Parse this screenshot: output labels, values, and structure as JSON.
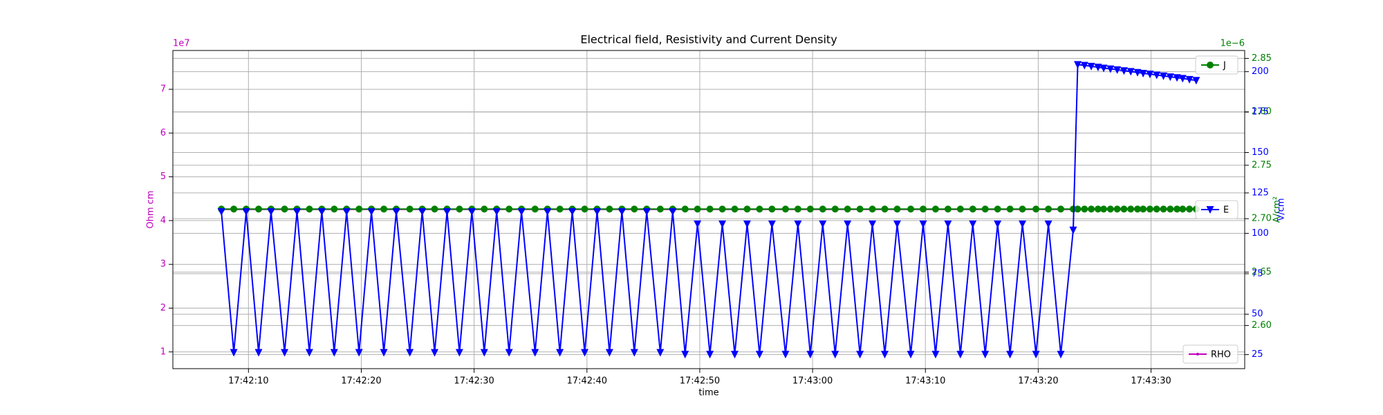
{
  "chart_data": {
    "type": "line",
    "title": "Electrical field, Resistivity and Current Density",
    "xlabel": "time",
    "x": [
      "17:42:07.6",
      "17:42:08.7",
      "17:42:09.8",
      "17:42:10.9",
      "17:42:12.0",
      "17:42:13.2",
      "17:42:14.3",
      "17:42:15.4",
      "17:42:16.5",
      "17:42:17.6",
      "17:42:18.7",
      "17:42:19.8",
      "17:42:20.9",
      "17:42:22.0",
      "17:42:23.1",
      "17:42:24.3",
      "17:42:25.4",
      "17:42:26.5",
      "17:42:27.6",
      "17:42:28.7",
      "17:42:29.8",
      "17:42:30.9",
      "17:42:32.0",
      "17:42:33.1",
      "17:42:34.2",
      "17:42:35.4",
      "17:42:36.5",
      "17:42:37.6",
      "17:42:38.7",
      "17:42:39.8",
      "17:42:40.9",
      "17:42:42.0",
      "17:42:43.1",
      "17:42:44.2",
      "17:42:45.3",
      "17:42:46.5",
      "17:42:47.6",
      "17:42:48.7",
      "17:42:49.8",
      "17:42:50.9",
      "17:42:52.0",
      "17:42:53.1",
      "17:42:54.2",
      "17:42:55.3",
      "17:42:56.4",
      "17:42:57.6",
      "17:42:58.7",
      "17:42:59.8",
      "17:43:00.9",
      "17:43:02.0",
      "17:43:03.1",
      "17:43:04.2",
      "17:43:05.3",
      "17:43:06.4",
      "17:43:07.5",
      "17:43:08.7",
      "17:43:09.8",
      "17:43:10.9",
      "17:43:12.0",
      "17:43:13.1",
      "17:43:14.2",
      "17:43:15.3",
      "17:43:16.4",
      "17:43:17.5",
      "17:43:18.6",
      "17:43:19.8",
      "17:43:20.9",
      "17:43:22.0",
      "17:43:23.1",
      "17:43:23.5",
      "17:43:24.1",
      "17:43:24.7",
      "17:43:25.3",
      "17:43:25.8",
      "17:43:26.4",
      "17:43:27.0",
      "17:43:27.6",
      "17:43:28.2",
      "17:43:28.8",
      "17:43:29.3",
      "17:43:29.9",
      "17:43:30.5",
      "17:43:31.1",
      "17:43:31.7",
      "17:43:32.3",
      "17:43:32.8",
      "17:43:33.4",
      "17:43:34.0"
    ],
    "xlim": [
      "17:42:03.3",
      "17:43:38.3"
    ],
    "xticks": [
      "17:42:10",
      "17:42:20",
      "17:42:30",
      "17:42:40",
      "17:42:50",
      "17:43:00",
      "17:43:10",
      "17:43:20",
      "17:43:30"
    ],
    "ylabel": "Ohm cm",
    "y_offset_label": "1e7",
    "y_color": "#bf00bf",
    "ylim": [
      0.617,
      7.886
    ],
    "yticks": [
      1,
      2,
      3,
      4,
      5,
      6,
      7
    ],
    "y2label": "A/cm²",
    "y2_offset_label": "1e−6",
    "y2_color": "#008000",
    "y2lim": [
      2.5596,
      2.8574
    ],
    "y2ticks": [
      {
        "value": 2.6,
        "label": "2.60"
      },
      2.65,
      {
        "value": 2.7,
        "label": "2.70"
      },
      2.75,
      {
        "value": 2.8,
        "label": "2.80"
      },
      2.85
    ],
    "y3label": "V/cm",
    "y3_color": "#0000ff",
    "y3lim": [
      16.3,
      213.1
    ],
    "y3ticks": [
      25,
      50,
      75,
      100,
      125,
      150,
      175,
      200
    ],
    "grid": true,
    "series": [
      {
        "name": "RHO",
        "color": "#bf00bf",
        "axis": "y",
        "marker": "point",
        "legend": "lower right",
        "values": [
          4.25,
          4.25,
          4.25,
          4.25,
          4.25,
          4.25,
          4.25,
          4.25,
          4.25,
          4.25,
          4.25,
          4.25,
          4.25,
          4.25,
          4.25,
          4.25,
          4.25,
          4.25,
          4.25,
          4.25,
          4.25,
          4.25,
          4.25,
          4.25,
          4.25,
          4.25,
          4.25,
          4.25,
          4.25,
          4.25,
          4.25,
          4.25,
          4.25,
          4.25,
          4.25,
          4.25,
          4.25,
          4.25,
          4.25,
          4.25,
          4.25,
          4.25,
          4.25,
          4.25,
          4.25,
          4.25,
          4.25,
          4.25,
          4.25,
          4.25,
          4.25,
          4.25,
          4.25,
          4.25,
          4.25,
          4.25,
          4.25,
          4.25,
          4.25,
          4.25,
          4.25,
          4.25,
          4.25,
          4.25,
          4.25,
          4.25,
          4.25,
          4.25,
          4.25,
          4.25,
          4.25,
          4.25,
          4.25,
          4.25,
          4.25,
          4.25,
          4.25,
          4.25,
          4.25,
          4.25,
          4.25,
          4.25,
          4.25,
          4.25,
          4.25,
          4.25,
          4.25,
          4.25
        ]
      },
      {
        "name": "J",
        "color": "#008000",
        "axis": "y2",
        "marker": "circle",
        "legend": "upper right",
        "values": [
          2.709,
          2.709,
          2.709,
          2.709,
          2.709,
          2.709,
          2.709,
          2.709,
          2.709,
          2.709,
          2.709,
          2.709,
          2.709,
          2.709,
          2.709,
          2.709,
          2.709,
          2.709,
          2.709,
          2.709,
          2.709,
          2.709,
          2.709,
          2.709,
          2.709,
          2.709,
          2.709,
          2.709,
          2.709,
          2.709,
          2.709,
          2.709,
          2.709,
          2.709,
          2.709,
          2.709,
          2.709,
          2.709,
          2.709,
          2.709,
          2.709,
          2.709,
          2.709,
          2.709,
          2.709,
          2.709,
          2.709,
          2.709,
          2.709,
          2.709,
          2.709,
          2.709,
          2.709,
          2.709,
          2.709,
          2.709,
          2.709,
          2.709,
          2.709,
          2.709,
          2.709,
          2.709,
          2.709,
          2.709,
          2.709,
          2.709,
          2.709,
          2.709,
          2.709,
          2.709,
          2.709,
          2.709,
          2.709,
          2.709,
          2.709,
          2.709,
          2.709,
          2.709,
          2.709,
          2.709,
          2.709,
          2.709,
          2.709,
          2.709,
          2.709,
          2.709,
          2.709,
          2.709
        ]
      },
      {
        "name": "E",
        "color": "#0000ff",
        "axis": "y3",
        "marker": "triangle_down",
        "legend": "center right",
        "values": [
          113.4,
          26.3,
          113.4,
          26.3,
          113.4,
          26.3,
          113.4,
          26.3,
          113.4,
          26.3,
          113.4,
          26.3,
          113.4,
          26.3,
          113.4,
          26.3,
          113.4,
          26.3,
          113.4,
          26.3,
          113.4,
          26.3,
          113.4,
          26.3,
          113.4,
          26.3,
          113.4,
          26.3,
          113.4,
          26.3,
          113.4,
          26.3,
          113.4,
          26.3,
          113.4,
          26.3,
          113.4,
          25.2,
          105.8,
          25.2,
          105.8,
          25.2,
          105.8,
          25.2,
          105.8,
          25.2,
          105.8,
          25.2,
          105.8,
          25.2,
          105.8,
          25.2,
          105.8,
          25.2,
          105.8,
          25.2,
          105.8,
          25.2,
          105.8,
          25.2,
          105.8,
          25.2,
          105.8,
          25.2,
          105.8,
          25.2,
          105.8,
          25.2,
          102.0,
          204.4,
          203.9,
          203.3,
          202.8,
          202.2,
          201.7,
          201.2,
          200.6,
          200.1,
          199.5,
          199.0,
          198.5,
          197.9,
          197.4,
          196.8,
          196.3,
          195.8,
          195.2,
          194.6
        ]
      }
    ]
  }
}
